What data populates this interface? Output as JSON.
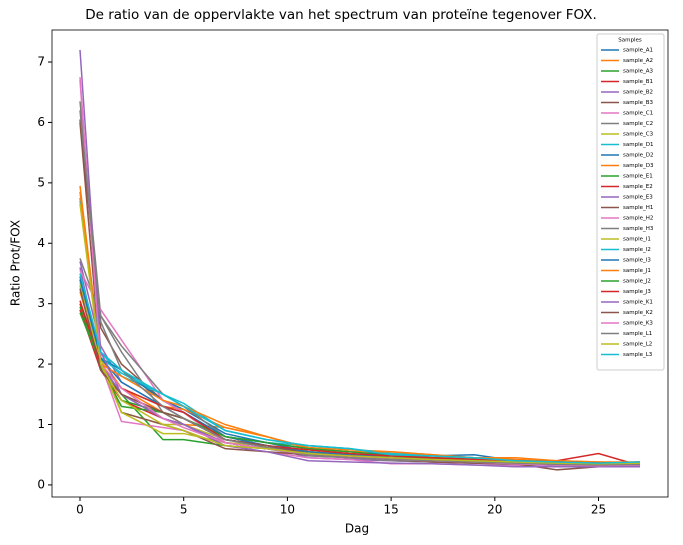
{
  "chart_data": {
    "type": "line",
    "title": "De ratio van de oppervlakte van het spectrum van proteïne tegenover FOX.",
    "x_label": "Dag",
    "y_label": "Ratio Prot/FOX",
    "legend_title": "Samples",
    "legend_position": "upper right",
    "xlim": [
      -1.35,
      28.35
    ],
    "xticks": [
      0,
      5,
      10,
      15,
      20,
      25
    ],
    "ylim": [
      -0.2,
      7.53
    ],
    "yticks": [
      0,
      1,
      2,
      3,
      4,
      5,
      6,
      7
    ],
    "x": [
      0,
      1,
      2,
      4,
      5,
      7,
      9,
      11,
      13,
      15,
      17,
      19,
      21,
      23,
      25,
      27
    ],
    "series": [
      {
        "name": "sample_A1",
        "color": "#1f77b4",
        "values": [
          3.4,
          2.2,
          1.9,
          1.4,
          1.2,
          0.8,
          0.7,
          0.55,
          0.5,
          0.45,
          0.45,
          0.42,
          0.35,
          0.32,
          0.3,
          0.32
        ]
      },
      {
        "name": "sample_A2",
        "color": "#ff7f0e",
        "values": [
          4.95,
          2.1,
          1.6,
          1.2,
          1.0,
          0.95,
          0.8,
          0.6,
          0.55,
          0.52,
          0.48,
          0.42,
          0.4,
          0.38,
          0.35,
          0.38
        ]
      },
      {
        "name": "sample_A3",
        "color": "#2ca02c",
        "values": [
          2.9,
          2.0,
          1.5,
          0.75,
          0.75,
          0.65,
          0.6,
          0.55,
          0.5,
          0.45,
          0.42,
          0.38,
          0.38,
          0.35,
          0.33,
          0.35
        ]
      },
      {
        "name": "sample_B1",
        "color": "#d62728",
        "values": [
          3.0,
          1.9,
          1.4,
          1.1,
          1.0,
          0.7,
          0.6,
          0.5,
          0.45,
          0.42,
          0.4,
          0.4,
          0.35,
          0.36,
          0.32,
          0.3
        ]
      },
      {
        "name": "sample_B2",
        "color": "#9467bd",
        "values": [
          3.7,
          2.3,
          1.7,
          1.3,
          1.1,
          0.75,
          0.65,
          0.45,
          0.42,
          0.4,
          0.38,
          0.36,
          0.34,
          0.33,
          0.32,
          0.33
        ]
      },
      {
        "name": "sample_B3",
        "color": "#8c564b",
        "values": [
          6.05,
          2.6,
          2.0,
          1.4,
          1.2,
          0.7,
          0.6,
          0.5,
          0.45,
          0.42,
          0.4,
          0.38,
          0.35,
          0.33,
          0.32,
          0.34
        ]
      },
      {
        "name": "sample_C1",
        "color": "#e377c2",
        "values": [
          6.75,
          2.0,
          1.05,
          0.95,
          0.9,
          0.65,
          0.55,
          0.45,
          0.42,
          0.35,
          0.35,
          0.33,
          0.32,
          0.3,
          0.3,
          0.3
        ]
      },
      {
        "name": "sample_C2",
        "color": "#7f7f7f",
        "values": [
          6.35,
          2.8,
          2.2,
          1.2,
          1.0,
          0.7,
          0.6,
          0.48,
          0.45,
          0.4,
          0.38,
          0.36,
          0.34,
          0.33,
          0.3,
          0.32
        ]
      },
      {
        "name": "sample_C3",
        "color": "#bcbd22",
        "values": [
          4.7,
          2.1,
          1.2,
          1.0,
          1.0,
          0.75,
          0.65,
          0.55,
          0.48,
          0.45,
          0.42,
          0.4,
          0.38,
          0.35,
          0.33,
          0.35
        ]
      },
      {
        "name": "sample_D1",
        "color": "#17becf",
        "values": [
          3.3,
          2.2,
          1.8,
          1.5,
          1.3,
          0.8,
          0.7,
          0.65,
          0.6,
          0.5,
          0.45,
          0.4,
          0.38,
          0.35,
          0.33,
          0.36
        ]
      },
      {
        "name": "sample_D2",
        "color": "#1f77b4",
        "values": [
          3.45,
          2.1,
          1.9,
          1.4,
          1.25,
          0.85,
          0.7,
          0.6,
          0.55,
          0.5,
          0.48,
          0.5,
          0.4,
          0.37,
          0.35,
          0.38
        ]
      },
      {
        "name": "sample_D3",
        "color": "#ff7f0e",
        "values": [
          3.2,
          2.0,
          1.6,
          1.3,
          1.25,
          0.95,
          0.8,
          0.62,
          0.58,
          0.55,
          0.5,
          0.45,
          0.42,
          0.4,
          0.38,
          0.36
        ]
      },
      {
        "name": "sample_E1",
        "color": "#2ca02c",
        "values": [
          2.95,
          1.95,
          1.3,
          1.2,
          1.1,
          0.75,
          0.65,
          0.55,
          0.5,
          0.45,
          0.43,
          0.4,
          0.38,
          0.35,
          0.33,
          0.35
        ]
      },
      {
        "name": "sample_E2",
        "color": "#d62728",
        "values": [
          2.9,
          1.9,
          1.5,
          1.2,
          1.1,
          0.75,
          0.65,
          0.55,
          0.5,
          0.45,
          0.4,
          0.38,
          0.35,
          0.4,
          0.52,
          0.32
        ]
      },
      {
        "name": "sample_E3",
        "color": "#9467bd",
        "values": [
          3.6,
          2.0,
          1.5,
          1.1,
          1.0,
          0.7,
          0.6,
          0.5,
          0.45,
          0.42,
          0.4,
          0.38,
          0.35,
          0.35,
          0.33,
          0.33
        ]
      },
      {
        "name": "sample_H1",
        "color": "#8c564b",
        "values": [
          6.0,
          2.0,
          1.2,
          1.0,
          0.9,
          0.6,
          0.55,
          0.5,
          0.45,
          0.42,
          0.38,
          0.36,
          0.35,
          0.25,
          0.3,
          0.3
        ]
      },
      {
        "name": "sample_H2",
        "color": "#e377c2",
        "values": [
          3.55,
          2.9,
          2.4,
          1.4,
          1.2,
          0.7,
          0.6,
          0.52,
          0.48,
          0.42,
          0.4,
          0.38,
          0.35,
          0.33,
          0.32,
          0.33
        ]
      },
      {
        "name": "sample_H3",
        "color": "#7f7f7f",
        "values": [
          3.75,
          2.8,
          2.3,
          1.5,
          1.3,
          0.8,
          0.65,
          0.55,
          0.5,
          0.45,
          0.42,
          0.4,
          0.36,
          0.34,
          0.32,
          0.34
        ]
      },
      {
        "name": "sample_I1",
        "color": "#bcbd22",
        "values": [
          3.35,
          2.0,
          1.2,
          0.85,
          0.85,
          0.7,
          0.65,
          0.55,
          0.5,
          0.48,
          0.45,
          0.4,
          0.38,
          0.36,
          0.35,
          0.36
        ]
      },
      {
        "name": "sample_I2",
        "color": "#17becf",
        "values": [
          4.75,
          2.1,
          1.85,
          1.5,
          1.35,
          0.9,
          0.75,
          0.65,
          0.6,
          0.52,
          0.48,
          0.45,
          0.4,
          0.38,
          0.36,
          0.38
        ]
      },
      {
        "name": "sample_I3",
        "color": "#1f77b4",
        "values": [
          3.4,
          2.1,
          1.7,
          1.3,
          1.2,
          0.8,
          0.65,
          0.55,
          0.5,
          0.48,
          0.45,
          0.42,
          0.4,
          0.37,
          0.35,
          0.37
        ]
      },
      {
        "name": "sample_J1",
        "color": "#ff7f0e",
        "values": [
          4.85,
          2.0,
          1.8,
          1.4,
          1.3,
          1.0,
          0.8,
          0.6,
          0.55,
          0.55,
          0.5,
          0.45,
          0.45,
          0.4,
          0.38,
          0.38
        ]
      },
      {
        "name": "sample_J2",
        "color": "#2ca02c",
        "values": [
          2.85,
          2.0,
          1.4,
          1.2,
          1.1,
          0.8,
          0.7,
          0.6,
          0.55,
          0.48,
          0.45,
          0.42,
          0.4,
          0.38,
          0.36,
          0.36
        ]
      },
      {
        "name": "sample_J3",
        "color": "#d62728",
        "values": [
          3.05,
          2.0,
          1.6,
          1.3,
          1.2,
          0.75,
          0.65,
          0.58,
          0.52,
          0.48,
          0.45,
          0.42,
          0.4,
          0.38,
          0.36,
          0.36
        ]
      },
      {
        "name": "sample_K1",
        "color": "#9467bd",
        "values": [
          7.2,
          2.2,
          1.5,
          1.1,
          1.0,
          0.65,
          0.55,
          0.4,
          0.38,
          0.36,
          0.35,
          0.33,
          0.3,
          0.3,
          0.3,
          0.3
        ]
      },
      {
        "name": "sample_K2",
        "color": "#8c564b",
        "values": [
          3.25,
          1.9,
          1.5,
          1.2,
          1.1,
          0.75,
          0.65,
          0.52,
          0.48,
          0.45,
          0.42,
          0.4,
          0.38,
          0.36,
          0.34,
          0.35
        ]
      },
      {
        "name": "sample_K3",
        "color": "#e377c2",
        "values": [
          6.7,
          2.0,
          1.6,
          1.1,
          0.95,
          0.7,
          0.6,
          0.5,
          0.45,
          0.42,
          0.4,
          0.38,
          0.35,
          0.33,
          0.32,
          0.33
        ]
      },
      {
        "name": "sample_L1",
        "color": "#7f7f7f",
        "values": [
          6.2,
          2.7,
          1.9,
          1.3,
          1.1,
          0.75,
          0.62,
          0.5,
          0.45,
          0.42,
          0.4,
          0.38,
          0.36,
          0.34,
          0.33,
          0.34
        ]
      },
      {
        "name": "sample_L2",
        "color": "#bcbd22",
        "values": [
          4.65,
          2.0,
          1.4,
          1.0,
          0.9,
          0.65,
          0.6,
          0.52,
          0.48,
          0.45,
          0.42,
          0.4,
          0.38,
          0.36,
          0.35,
          0.36
        ]
      },
      {
        "name": "sample_L3",
        "color": "#17becf",
        "values": [
          3.5,
          2.2,
          1.9,
          1.5,
          1.3,
          0.9,
          0.75,
          0.65,
          0.6,
          0.5,
          0.48,
          0.45,
          0.4,
          0.38,
          0.36,
          0.38
        ]
      }
    ]
  }
}
